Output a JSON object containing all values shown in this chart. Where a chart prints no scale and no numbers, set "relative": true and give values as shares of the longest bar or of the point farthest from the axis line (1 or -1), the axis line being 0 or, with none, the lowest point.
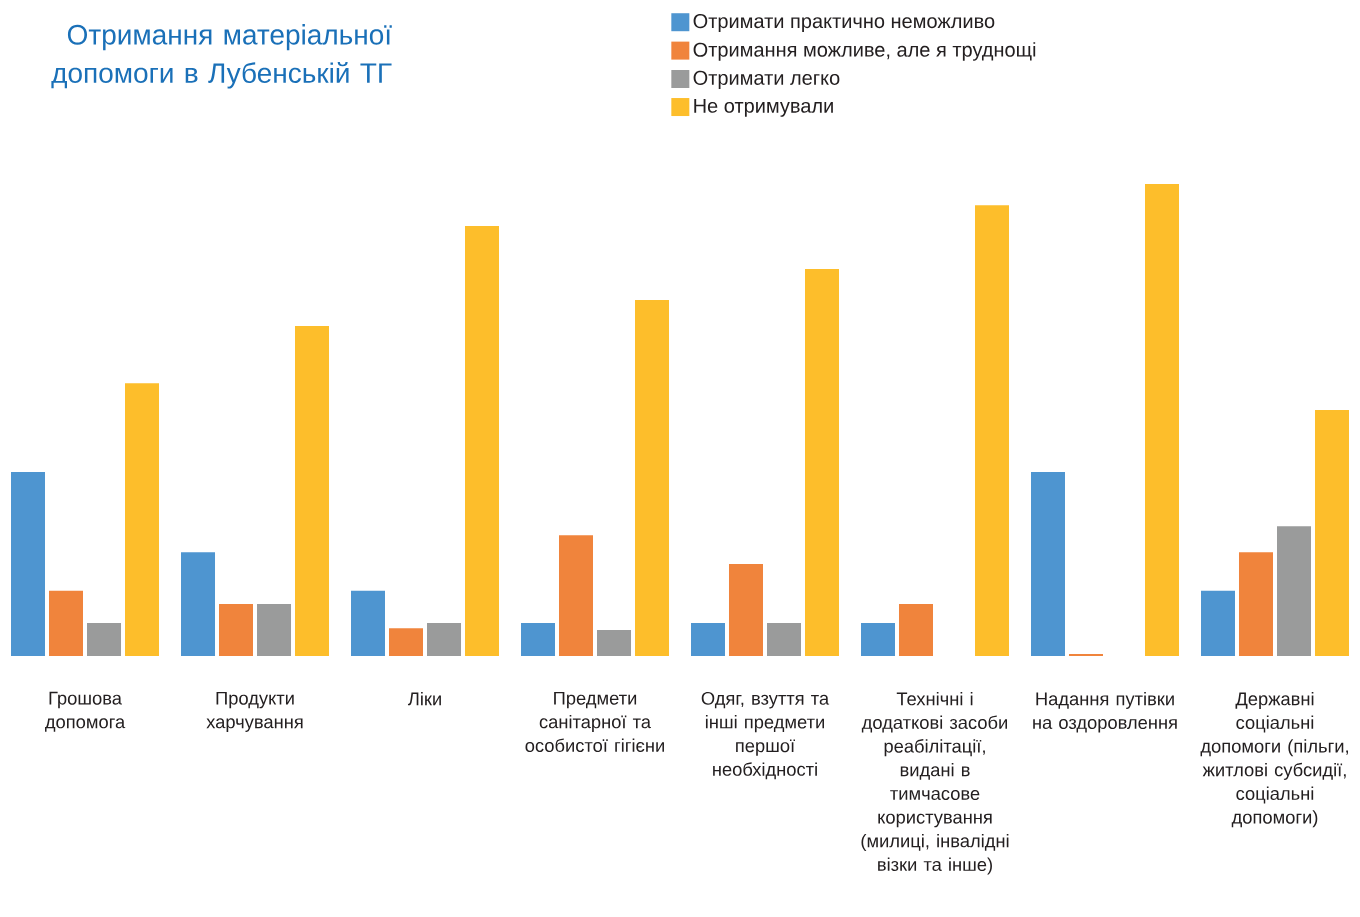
{
  "chart_data": {
    "type": "bar",
    "title": "Отримання матеріальної допомоги в Лубенській ТГ",
    "categories": [
      "Грошова допомога",
      "Продукти харчування",
      "Ліки",
      "Предмети санітарної та особистої гігієни",
      "Одяг, взуття та інші предмети першої необхідності",
      "Технічні і додаткові засоби реабілітації, видані в тимчасове користування (милиці, інвалідні візки та інше)",
      "Надання путівки на оздоровлення",
      "Державні соціальні допомоги (пільги, житлові субсидії, соціальні допомоги)"
    ],
    "relative": true,
    "legend": "top",
    "series": [
      {
        "name": "Отримати практично неможливо",
        "color": "#4e95d0",
        "values": [
          0.39,
          0.22,
          0.138,
          0.07,
          0.07,
          0.07,
          0.39,
          0.138
        ]
      },
      {
        "name": "Отримання можливе, але я труднощі",
        "color": "#f0843c",
        "values": [
          0.138,
          0.11,
          0.059,
          0.256,
          0.195,
          0.11,
          0.004,
          0.22
        ]
      },
      {
        "name": "Отримати легко",
        "color": "#9a9b9b",
        "values": [
          0.07,
          0.11,
          0.07,
          0.055,
          0.07,
          0,
          0,
          0.275
        ]
      },
      {
        "name": "Не отримували",
        "color": "#fdbe2b",
        "values": [
          0.578,
          0.699,
          0.911,
          0.754,
          0.82,
          0.955,
          1,
          0.521
        ]
      }
    ]
  }
}
